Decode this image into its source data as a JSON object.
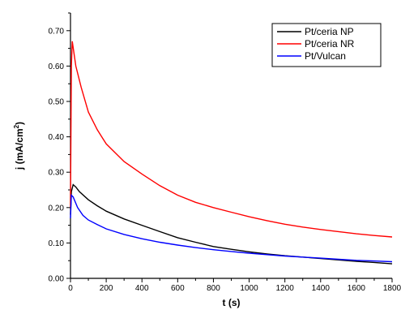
{
  "chart_data": {
    "type": "line",
    "xlabel": "t (s)",
    "ylabel_main": "j (mA/cm",
    "ylabel_sup": "2",
    "ylabel_close": ")",
    "xlim": [
      0,
      1800
    ],
    "ylim": [
      0,
      0.75
    ],
    "xticks": [
      0,
      200,
      400,
      600,
      800,
      1000,
      1200,
      1400,
      1600,
      1800
    ],
    "xtick_labels": [
      "0",
      "200",
      "400",
      "600",
      "800",
      "1000",
      "1200",
      "1400",
      "1600",
      "1800"
    ],
    "yticks": [
      0,
      0.1,
      0.2,
      0.3,
      0.4,
      0.5,
      0.6,
      0.7
    ],
    "ytick_labels": [
      "0.00",
      "0.10",
      "0.20",
      "0.30",
      "0.40",
      "0.50",
      "0.60",
      "0.70"
    ],
    "grid": false,
    "legend_position": "top-right",
    "series": [
      {
        "name": "Pt/ceria NP",
        "color": "#000000",
        "x": [
          0,
          5,
          15,
          30,
          50,
          100,
          150,
          200,
          300,
          400,
          500,
          600,
          700,
          800,
          900,
          1000,
          1100,
          1200,
          1300,
          1400,
          1500,
          1600,
          1700,
          1800
        ],
        "y": [
          0.18,
          0.245,
          0.265,
          0.258,
          0.245,
          0.222,
          0.205,
          0.19,
          0.168,
          0.15,
          0.132,
          0.115,
          0.102,
          0.09,
          0.082,
          0.075,
          0.069,
          0.064,
          0.06,
          0.056,
          0.052,
          0.048,
          0.045,
          0.041
        ]
      },
      {
        "name": "Pt/ceria NR",
        "color": "#ff0000",
        "x": [
          0,
          5,
          10,
          30,
          60,
          100,
          150,
          200,
          300,
          400,
          500,
          600,
          700,
          800,
          900,
          1000,
          1100,
          1200,
          1300,
          1400,
          1500,
          1600,
          1700,
          1800
        ],
        "y": [
          0.2,
          0.6,
          0.67,
          0.6,
          0.54,
          0.47,
          0.42,
          0.38,
          0.33,
          0.295,
          0.262,
          0.235,
          0.215,
          0.2,
          0.187,
          0.174,
          0.163,
          0.153,
          0.145,
          0.138,
          0.132,
          0.126,
          0.121,
          0.117
        ]
      },
      {
        "name": "Pt/Vulcan",
        "color": "#0000ff",
        "x": [
          0,
          5,
          15,
          40,
          70,
          100,
          150,
          200,
          300,
          400,
          500,
          600,
          700,
          800,
          900,
          1000,
          1100,
          1200,
          1300,
          1400,
          1500,
          1600,
          1700,
          1800
        ],
        "y": [
          0.17,
          0.235,
          0.23,
          0.2,
          0.178,
          0.165,
          0.152,
          0.14,
          0.124,
          0.112,
          0.102,
          0.094,
          0.087,
          0.081,
          0.076,
          0.071,
          0.067,
          0.063,
          0.06,
          0.057,
          0.054,
          0.051,
          0.049,
          0.047
        ]
      }
    ]
  }
}
